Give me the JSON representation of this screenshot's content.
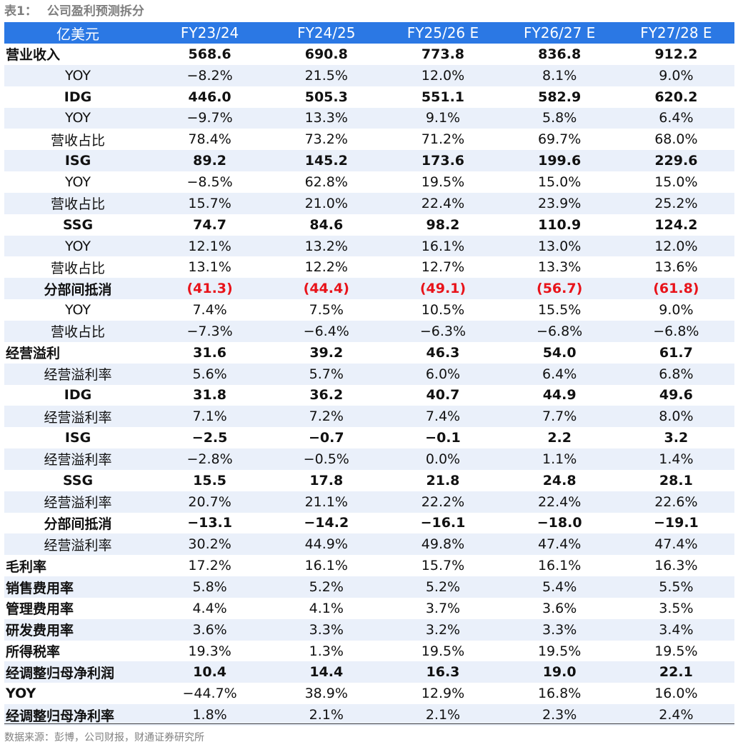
{
  "title": {
    "label": "表1：",
    "text": "公司盈利预测拆分"
  },
  "table": {
    "headers": [
      "亿美元",
      "FY23/24",
      "FY24/25",
      "FY25/26 E",
      "FY26/27 E",
      "FY27/28 E"
    ],
    "rows": [
      {
        "label": "营业收入",
        "values": [
          "568.6",
          "690.8",
          "773.8",
          "836.8",
          "912.2"
        ],
        "bold": true,
        "align": "left"
      },
      {
        "label": "YOY",
        "values": [
          "−8.2%",
          "21.5%",
          "12.0%",
          "8.1%",
          "9.0%"
        ],
        "bold": false,
        "align": "center"
      },
      {
        "label": "IDG",
        "values": [
          "446.0",
          "505.3",
          "551.1",
          "582.9",
          "620.2"
        ],
        "bold": true,
        "align": "center"
      },
      {
        "label": "YOY",
        "values": [
          "−9.7%",
          "13.3%",
          "9.1%",
          "5.8%",
          "6.4%"
        ],
        "bold": false,
        "align": "center"
      },
      {
        "label": "营收占比",
        "values": [
          "78.4%",
          "73.2%",
          "71.2%",
          "69.7%",
          "68.0%"
        ],
        "bold": false,
        "align": "center"
      },
      {
        "label": "ISG",
        "values": [
          "89.2",
          "145.2",
          "173.6",
          "199.6",
          "229.6"
        ],
        "bold": true,
        "align": "center"
      },
      {
        "label": "YOY",
        "values": [
          "−8.5%",
          "62.8%",
          "19.5%",
          "15.0%",
          "15.0%"
        ],
        "bold": false,
        "align": "center"
      },
      {
        "label": "营收占比",
        "values": [
          "15.7%",
          "21.0%",
          "22.4%",
          "23.9%",
          "25.2%"
        ],
        "bold": false,
        "align": "center"
      },
      {
        "label": "SSG",
        "values": [
          "74.7",
          "84.6",
          "98.2",
          "110.9",
          "124.2"
        ],
        "bold": true,
        "align": "center"
      },
      {
        "label": "YOY",
        "values": [
          "12.1%",
          "13.2%",
          "16.1%",
          "13.0%",
          "12.0%"
        ],
        "bold": false,
        "align": "center"
      },
      {
        "label": "营收占比",
        "values": [
          "13.1%",
          "12.2%",
          "12.7%",
          "13.3%",
          "13.6%"
        ],
        "bold": false,
        "align": "center"
      },
      {
        "label": "分部间抵消",
        "values": [
          "(41.3)",
          "(44.4)",
          "(49.1)",
          "(56.7)",
          "(61.8)"
        ],
        "bold": true,
        "align": "center",
        "value_color": "#e8131a"
      },
      {
        "label": "YOY",
        "values": [
          "7.4%",
          "7.5%",
          "10.5%",
          "15.5%",
          "9.0%"
        ],
        "bold": false,
        "align": "center"
      },
      {
        "label": "营收占比",
        "values": [
          "−7.3%",
          "−6.4%",
          "−6.3%",
          "−6.8%",
          "−6.8%"
        ],
        "bold": false,
        "align": "center"
      },
      {
        "label": "经营溢利",
        "values": [
          "31.6",
          "39.2",
          "46.3",
          "54.0",
          "61.7"
        ],
        "bold": true,
        "align": "left"
      },
      {
        "label": "经营溢利率",
        "values": [
          "5.6%",
          "5.7%",
          "6.0%",
          "6.4%",
          "6.8%"
        ],
        "bold": false,
        "align": "center"
      },
      {
        "label": "IDG",
        "values": [
          "31.8",
          "36.2",
          "40.7",
          "44.9",
          "49.6"
        ],
        "bold": true,
        "align": "center"
      },
      {
        "label": "经营溢利率",
        "values": [
          "7.1%",
          "7.2%",
          "7.4%",
          "7.7%",
          "8.0%"
        ],
        "bold": false,
        "align": "center"
      },
      {
        "label": "ISG",
        "values": [
          "−2.5",
          "−0.7",
          "−0.1",
          "2.2",
          "3.2"
        ],
        "bold": true,
        "align": "center"
      },
      {
        "label": "经营溢利率",
        "values": [
          "−2.8%",
          "−0.5%",
          "0.0%",
          "1.1%",
          "1.4%"
        ],
        "bold": false,
        "align": "center"
      },
      {
        "label": "SSG",
        "values": [
          "15.5",
          "17.8",
          "21.8",
          "24.8",
          "28.1"
        ],
        "bold": true,
        "align": "center"
      },
      {
        "label": "经营溢利率",
        "values": [
          "20.7%",
          "21.1%",
          "22.2%",
          "22.4%",
          "22.6%"
        ],
        "bold": false,
        "align": "center"
      },
      {
        "label": "分部间抵消",
        "values": [
          "−13.1",
          "−14.2",
          "−16.1",
          "−18.0",
          "−19.1"
        ],
        "bold": true,
        "align": "center"
      },
      {
        "label": "经营溢利率",
        "values": [
          "30.2%",
          "44.9%",
          "49.8%",
          "47.4%",
          "47.4%"
        ],
        "bold": false,
        "align": "center"
      },
      {
        "label": "毛利率",
        "values": [
          "17.2%",
          "16.1%",
          "15.7%",
          "16.1%",
          "16.3%"
        ],
        "bold": false,
        "label_bold": true,
        "align": "left"
      },
      {
        "label": "销售费用率",
        "values": [
          "5.8%",
          "5.2%",
          "5.2%",
          "5.4%",
          "5.5%"
        ],
        "bold": false,
        "label_bold": true,
        "align": "left"
      },
      {
        "label": "管理费用率",
        "values": [
          "4.4%",
          "4.1%",
          "3.7%",
          "3.6%",
          "3.5%"
        ],
        "bold": false,
        "label_bold": true,
        "align": "left"
      },
      {
        "label": "研发费用率",
        "values": [
          "3.6%",
          "3.3%",
          "3.2%",
          "3.3%",
          "3.4%"
        ],
        "bold": false,
        "label_bold": true,
        "align": "left"
      },
      {
        "label": "所得税率",
        "values": [
          "19.3%",
          "1.3%",
          "19.5%",
          "19.5%",
          "19.5%"
        ],
        "bold": false,
        "label_bold": true,
        "align": "left"
      },
      {
        "label": "经调整归母净利润",
        "values": [
          "10.4",
          "14.4",
          "16.3",
          "19.0",
          "22.1"
        ],
        "bold": true,
        "align": "left"
      },
      {
        "label": "YOY",
        "values": [
          "−44.7%",
          "38.9%",
          "12.9%",
          "16.8%",
          "16.0%"
        ],
        "bold": false,
        "label_bold": true,
        "align": "left"
      },
      {
        "label": "经调整归母净利率",
        "values": [
          "1.8%",
          "2.1%",
          "2.1%",
          "2.3%",
          "2.4%"
        ],
        "bold": false,
        "label_bold": true,
        "align": "left"
      }
    ]
  },
  "source": "数据来源：彭博，公司财报，财通证券研究所"
}
